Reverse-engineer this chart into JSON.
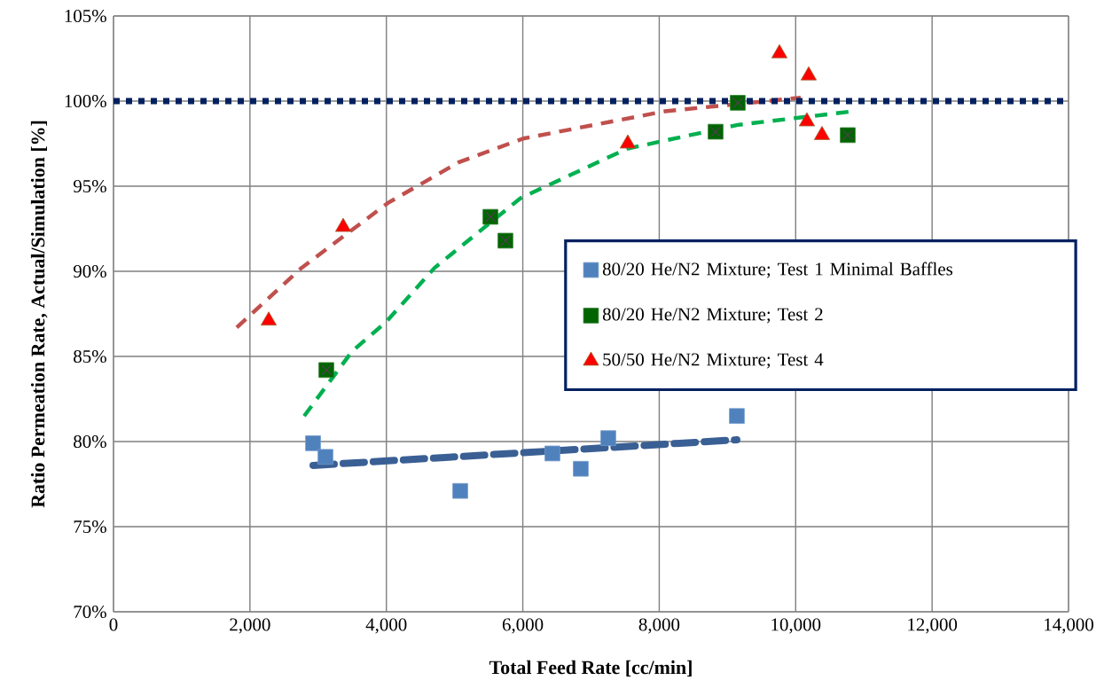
{
  "chart_data": {
    "type": "scatter",
    "xlabel": "Total Feed Rate [cc/min]",
    "ylabel": "Ratio Permeation Rate, Actual/Simulation [%]",
    "xlim": [
      0,
      14000
    ],
    "ylim": [
      70,
      105
    ],
    "xticks": [
      0,
      {
        "value": 2000,
        "label": "2,000"
      },
      {
        "value": 4000,
        "label": "4,000"
      },
      {
        "value": 6000,
        "label": "6,000"
      },
      {
        "value": 8000,
        "label": "8,000"
      },
      {
        "value": 10000,
        "label": "10,000"
      },
      {
        "value": 12000,
        "label": "12,000"
      },
      {
        "value": 14000,
        "label": "14,000"
      }
    ],
    "yticks": [
      {
        "value": 70,
        "label": "70%"
      },
      {
        "value": 75,
        "label": "75%"
      },
      {
        "value": 80,
        "label": "80%"
      },
      {
        "value": 85,
        "label": "85%"
      },
      {
        "value": 90,
        "label": "90%"
      },
      {
        "value": 95,
        "label": "95%"
      },
      {
        "value": 100,
        "label": "100%"
      },
      {
        "value": 105,
        "label": "105%"
      }
    ],
    "grid": true,
    "legend": "right",
    "ref_lines": [
      {
        "axis": "y",
        "value": 100,
        "color": "#002060",
        "line_style": "dotted"
      }
    ],
    "series": [
      {
        "name": "80/20 He/N2 Mixture; Test 1 Minimal Baffles",
        "marker": "square",
        "color": "#4f81bd",
        "x": [
          2925,
          3107,
          5083,
          6434,
          6850,
          7253,
          9138
        ],
        "values": [
          79.9,
          79.1,
          77.1,
          79.3,
          78.4,
          80.2,
          81.5
        ]
      },
      {
        "name": "80/20 He/N2 Mixture; Test 2",
        "marker": "square",
        "color": "#006400",
        "x": [
          3120,
          5525,
          5745,
          8826,
          9151,
          10763
        ],
        "values": [
          84.2,
          93.2,
          91.8,
          98.2,
          99.9,
          98.0
        ]
      },
      {
        "name": "50/50 He/N2 Mixture; Test 4",
        "marker": "triangle",
        "color": "#ff0000",
        "x": [
          2275,
          3367,
          7539,
          9762,
          10191,
          10165,
          10386
        ],
        "values": [
          87.1,
          92.6,
          97.5,
          102.8,
          101.5,
          98.8,
          98.0
        ]
      },
      {
        "type": "line",
        "line_style": "dashed",
        "color": "#3a5f94",
        "x": [
          2925,
          9138
        ],
        "values": [
          78.6,
          80.1
        ]
      },
      {
        "type": "line",
        "line_style": "dashed",
        "color": "#00b050",
        "x": [
          2795,
          3497,
          3990,
          4706,
          5967,
          7526,
          9151,
          10841
        ],
        "values": [
          81.5,
          85.3,
          87.0,
          90.2,
          94.3,
          97.2,
          98.6,
          99.4
        ]
      },
      {
        "type": "line",
        "line_style": "dashed",
        "color": "#c0504d",
        "x": [
          1807,
          2756,
          4017,
          5057,
          6006,
          8085,
          10074
        ],
        "values": [
          86.7,
          90.2,
          94.0,
          96.4,
          97.8,
          99.4,
          100.2
        ]
      }
    ]
  }
}
